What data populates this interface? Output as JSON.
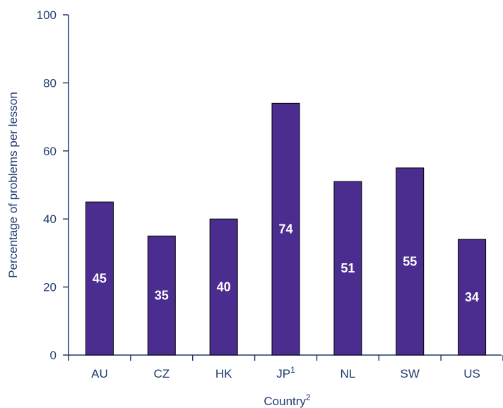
{
  "chart_data": {
    "type": "bar",
    "categories": [
      "AU",
      "CZ",
      "HK",
      "JP",
      "NL",
      "SW",
      "US"
    ],
    "category_superscripts": [
      "",
      "",
      "",
      "1",
      "",
      "",
      ""
    ],
    "values": [
      45,
      35,
      40,
      74,
      51,
      55,
      34
    ],
    "data_labels": [
      "45",
      "35",
      "40",
      "74",
      "51",
      "55",
      "34"
    ],
    "yticks": [
      0,
      20,
      40,
      60,
      80,
      100
    ],
    "ylim": [
      0,
      100
    ],
    "ylabel": "Percentage of problems per lesson",
    "xlabel": "Country",
    "xlabel_superscript": "2",
    "title": "",
    "grid": false,
    "legend": "none",
    "colors": {
      "bar": "#4b2d8f",
      "axis": "#1f3b6e",
      "label": "#ffffff"
    }
  }
}
